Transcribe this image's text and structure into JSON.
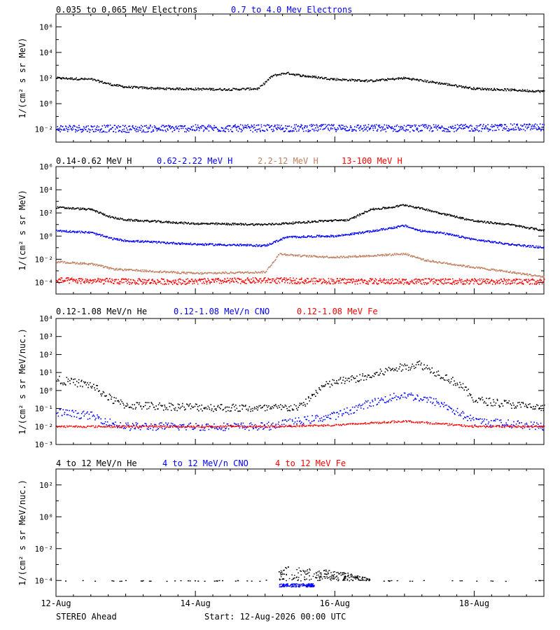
{
  "chart_data": [
    {
      "type": "scatter",
      "y_scale": "log",
      "ylim": [
        0.001,
        10000000
      ],
      "ylabel": "1/(cm² s sr MeV)",
      "y_ticks": [
        {
          "value": 0.01,
          "label": "10⁻²"
        },
        {
          "value": 1,
          "label": "10⁰"
        },
        {
          "value": 100,
          "label": "10²"
        },
        {
          "value": 10000,
          "label": "10⁴"
        },
        {
          "value": 1000000,
          "label": "10⁶"
        }
      ],
      "series": [
        {
          "name": "0.035 to 0.065 MeV Electrons",
          "color": "#000000",
          "x": [
            0,
            0.5,
            0.8,
            1.0,
            1.5,
            2.0,
            2.5,
            2.9,
            3.1,
            3.3,
            3.5,
            4.0,
            4.5,
            5.0,
            5.5,
            6.0,
            6.5,
            7.0
          ],
          "y": [
            100,
            80,
            30,
            20,
            15,
            14,
            13,
            15,
            150,
            250,
            160,
            80,
            60,
            100,
            40,
            15,
            12,
            9
          ]
        },
        {
          "name": "0.7 to 4.0 Mev Electrons",
          "color": "#0000ff",
          "x": [
            0,
            1,
            2,
            3,
            4,
            5,
            6,
            7
          ],
          "y": [
            0.012,
            0.011,
            0.012,
            0.012,
            0.013,
            0.012,
            0.013,
            0.015
          ]
        }
      ]
    },
    {
      "type": "scatter",
      "y_scale": "log",
      "ylim": [
        1e-05,
        1000000
      ],
      "ylabel": "1/(cm² s sr MeV)",
      "y_ticks": [
        {
          "value": 0.0001,
          "label": "10⁻⁴"
        },
        {
          "value": 0.01,
          "label": "10⁻²"
        },
        {
          "value": 1,
          "label": "10⁰"
        },
        {
          "value": 100,
          "label": "10²"
        },
        {
          "value": 10000,
          "label": "10⁴"
        },
        {
          "value": 1000000,
          "label": "10⁶"
        }
      ],
      "series": [
        {
          "name": "0.14-0.62 MeV H",
          "color": "#000000",
          "x": [
            0,
            0.5,
            0.8,
            1.0,
            2.0,
            3.0,
            3.5,
            3.8,
            4.2,
            4.5,
            4.8,
            5.0,
            5.3,
            5.5,
            6.0,
            6.5,
            7.0
          ],
          "y": [
            300,
            200,
            40,
            25,
            12,
            10,
            15,
            20,
            25,
            200,
            300,
            500,
            200,
            100,
            20,
            10,
            3
          ]
        },
        {
          "name": "0.62-2.22 MeV H",
          "color": "#0000ff",
          "x": [
            0,
            0.5,
            0.8,
            1.0,
            2.0,
            3.0,
            3.3,
            3.8,
            4.0,
            4.5,
            5.0,
            5.2,
            5.5,
            6.0,
            6.5,
            7.0
          ],
          "y": [
            3,
            2,
            0.6,
            0.4,
            0.2,
            0.15,
            0.8,
            1.0,
            1.0,
            2.5,
            8,
            3,
            2,
            0.5,
            0.2,
            0.1
          ]
        },
        {
          "name": "2.2-12 MeV H",
          "color": "#c08060",
          "x": [
            0,
            0.5,
            0.8,
            1.0,
            2.0,
            3.0,
            3.2,
            3.5,
            4.0,
            4.5,
            5.0,
            5.3,
            6.0,
            6.5,
            7.0
          ],
          "y": [
            0.006,
            0.004,
            0.0015,
            0.0012,
            0.0006,
            0.0008,
            0.03,
            0.02,
            0.015,
            0.02,
            0.03,
            0.008,
            0.002,
            0.0008,
            0.0003
          ]
        },
        {
          "name": "13-100 MeV H",
          "color": "#ff0000",
          "x": [
            0,
            1,
            2,
            3,
            4,
            5,
            6,
            7
          ],
          "y": [
            0.00015,
            0.00012,
            0.00012,
            0.00015,
            0.00013,
            0.00012,
            0.00012,
            0.00012
          ]
        }
      ]
    },
    {
      "type": "scatter",
      "y_scale": "log",
      "ylim": [
        0.001,
        10000
      ],
      "ylabel": "1/(cm² s sr MeV/nuc.)",
      "y_ticks": [
        {
          "value": 0.001,
          "label": "10⁻³"
        },
        {
          "value": 0.01,
          "label": "10⁻²"
        },
        {
          "value": 0.1,
          "label": "10⁻¹"
        },
        {
          "value": 1,
          "label": "10⁰"
        },
        {
          "value": 10,
          "label": "10¹"
        },
        {
          "value": 100,
          "label": "10²"
        },
        {
          "value": 1000,
          "label": "10³"
        },
        {
          "value": 10000,
          "label": "10⁴"
        }
      ],
      "series": [
        {
          "name": "0.12-1.08 MeV/n He",
          "color": "#000000",
          "x": [
            0,
            0.5,
            0.8,
            1.0,
            2.0,
            3.0,
            3.5,
            3.8,
            4.0,
            4.5,
            4.8,
            5.0,
            5.2,
            5.5,
            5.8,
            6.0,
            7.0
          ],
          "y": [
            4,
            2,
            0.3,
            0.15,
            0.12,
            0.1,
            0.12,
            1.5,
            3,
            6,
            15,
            20,
            30,
            8,
            2,
            0.3,
            0.1
          ]
        },
        {
          "name": "0.12-1.08 MeV/n CNO",
          "color": "#0000ff",
          "x": [
            0,
            0.5,
            0.8,
            1.0,
            2.0,
            3.0,
            3.5,
            4.0,
            4.5,
            5.0,
            5.5,
            6.0,
            7.0
          ],
          "y": [
            0.06,
            0.04,
            0.015,
            0.01,
            0.01,
            0.01,
            0.02,
            0.04,
            0.2,
            0.6,
            0.2,
            0.02,
            0.01
          ]
        },
        {
          "name": "0.12-1.08 MeV Fe",
          "color": "#ff0000",
          "x": [
            0,
            1,
            2,
            3,
            4,
            5,
            6,
            7
          ],
          "y": [
            0.01,
            0.01,
            0.01,
            0.01,
            0.012,
            0.02,
            0.01,
            0.01
          ]
        }
      ]
    },
    {
      "type": "scatter",
      "y_scale": "log",
      "ylim": [
        1e-05,
        1000
      ],
      "ylabel": "1/(cm² s sr MeV/nuc.)",
      "y_ticks": [
        {
          "value": 0.0001,
          "label": "10⁻⁴"
        },
        {
          "value": 0.01,
          "label": "10⁻²"
        },
        {
          "value": 1,
          "label": "10⁰"
        },
        {
          "value": 100,
          "label": "10²"
        }
      ],
      "series": [
        {
          "name": "4 to 12 MeV/n He",
          "color": "#000000",
          "x": [
            0,
            1,
            2,
            3.0,
            3.3,
            3.8,
            4.2,
            4.6,
            5.0,
            6.0,
            7.0
          ],
          "y": [
            0.0001,
            0.0001,
            0.0001,
            0.0001,
            0.0008,
            0.0005,
            0.0003,
            0.0001,
            0.0001,
            0.0001,
            0.0001
          ]
        },
        {
          "name": "4 to 12 MeV/n CNO",
          "color": "#0000ff",
          "x": [
            3.2,
            3.7
          ],
          "y": [
            5e-05,
            5e-05
          ]
        },
        {
          "name": "4 to 12 MeV Fe",
          "color": "#ff0000",
          "x": [],
          "y": []
        }
      ]
    }
  ],
  "x_axis": {
    "range_days": [
      0,
      7
    ],
    "ticks": [
      {
        "value": 0,
        "label": "12-Aug"
      },
      {
        "value": 2,
        "label": "14-Aug"
      },
      {
        "value": 4,
        "label": "16-Aug"
      },
      {
        "value": 6,
        "label": "18-Aug"
      }
    ]
  },
  "footer": {
    "spacecraft": "STEREO Ahead",
    "start": "Start: 12-Aug-2026 00:00 UTC"
  }
}
